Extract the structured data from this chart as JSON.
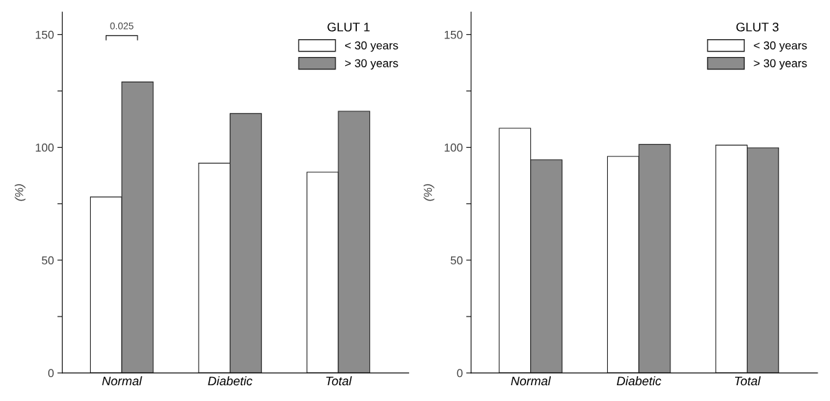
{
  "chart_data": [
    {
      "type": "bar",
      "ylabel": "(%)",
      "legend_title": "GLUT 1",
      "categories": [
        "Normal",
        "Diabetic",
        "Total"
      ],
      "series": [
        {
          "name": "< 30 years",
          "color": "#ffffff",
          "values": [
            78,
            93,
            89
          ]
        },
        {
          "name": "> 30 years",
          "color": "#8c8c8c",
          "values": [
            129,
            115,
            116
          ]
        }
      ],
      "ylim": [
        0,
        160
      ],
      "yticks": [
        0,
        {
          "value": 25,
          "label": null
        },
        50,
        {
          "value": 75,
          "label": null
        },
        100,
        {
          "value": 125,
          "label": null
        },
        150
      ],
      "annotations": [
        "0.025"
      ],
      "grid": false,
      "legend": "top right"
    },
    {
      "type": "bar",
      "ylabel": "(%)",
      "legend_title": "GLUT 3",
      "categories": [
        "Normal",
        "Diabetic",
        "Total"
      ],
      "series": [
        {
          "name": "< 30 years",
          "color": "#ffffff",
          "values": [
            108.5,
            96,
            101
          ]
        },
        {
          "name": "> 30 years",
          "color": "#8c8c8c",
          "values": [
            94.5,
            101.3,
            99.8
          ]
        }
      ],
      "ylim": [
        0,
        160
      ],
      "yticks": [
        0,
        {
          "value": 25,
          "label": null
        },
        50,
        {
          "value": 75,
          "label": null
        },
        100,
        {
          "value": 125,
          "label": null
        },
        150
      ],
      "grid": false,
      "legend": "top right"
    }
  ]
}
